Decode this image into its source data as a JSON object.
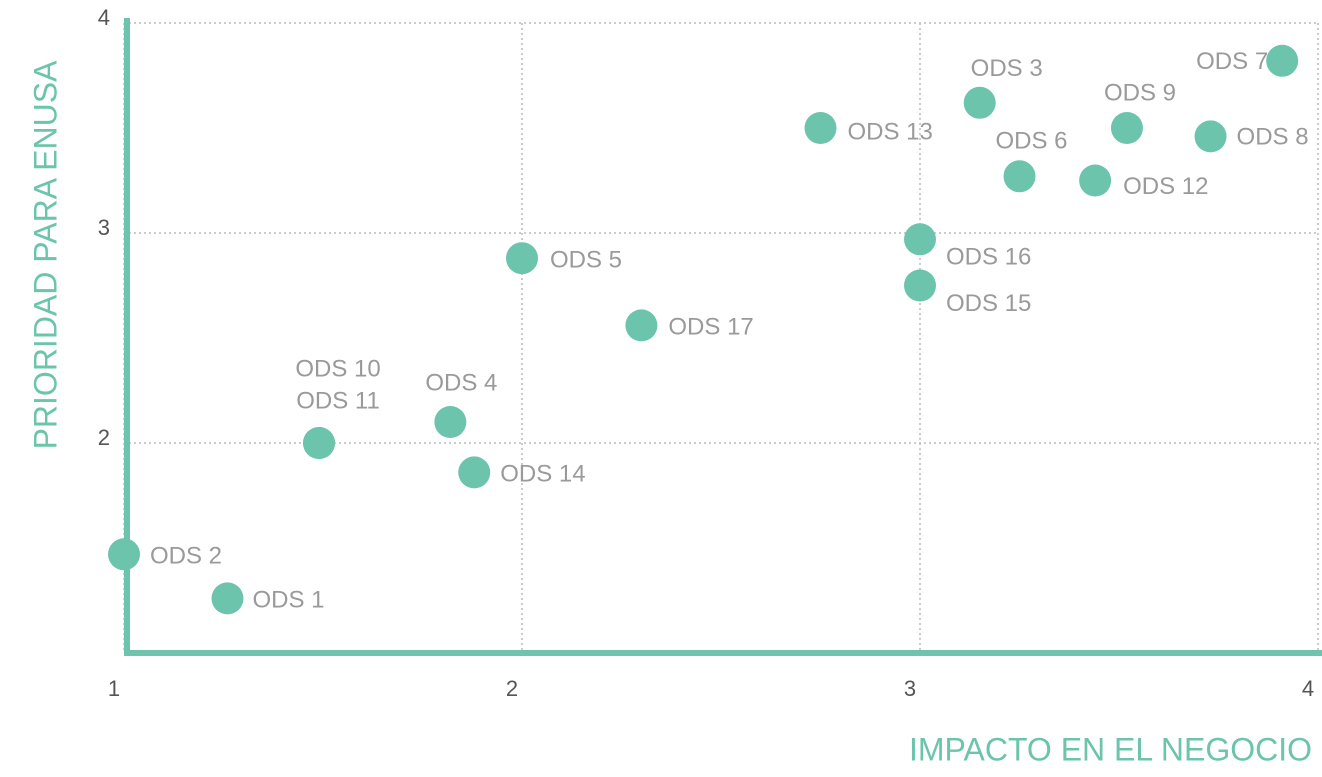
{
  "chart_data": {
    "type": "scatter",
    "x_label": "IMPACTO EN EL NEGOCIO",
    "y_label": "PRIORIDAD PARA ENUSA",
    "color": "#6cc4ad",
    "labels": [
      "ODS 2",
      "ODS 1",
      "ODS 10",
      "ODS 11",
      "ODS 4",
      "ODS 14",
      "ODS 5",
      "ODS 17",
      "ODS 13",
      "ODS 16",
      "ODS 15",
      "ODS 3",
      "ODS 6",
      "ODS 12",
      "ODS 9",
      "ODS 8",
      "ODS 7"
    ],
    "x": [
      1.0,
      1.26,
      1.49,
      1.49,
      1.82,
      1.88,
      2.0,
      2.3,
      2.75,
      3.0,
      3.0,
      3.15,
      3.25,
      3.44,
      3.52,
      3.73,
      3.91
    ],
    "values": [
      1.47,
      1.26,
      2.0,
      2.0,
      2.1,
      1.86,
      2.88,
      2.56,
      3.5,
      2.97,
      2.75,
      3.62,
      3.27,
      3.25,
      3.5,
      3.46,
      3.82
    ],
    "xlim": [
      1,
      4
    ],
    "ylim": [
      1,
      4
    ],
    "xticks": [
      1,
      2,
      3,
      4
    ],
    "yticks": [
      2,
      3,
      4
    ],
    "grid": true
  }
}
